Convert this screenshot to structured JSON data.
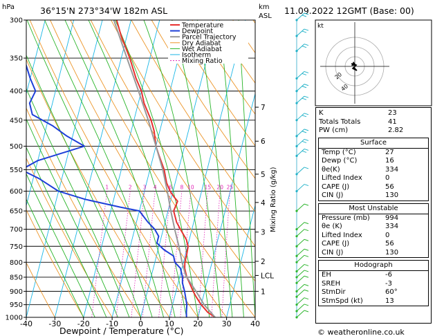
{
  "header": {
    "location": "36°15'N  273°34'W  182m  ASL",
    "datetime": "11.09.2022  12GMT  (Base: 00)",
    "hpa_label": "hPa",
    "km_label": "km",
    "asl_label": "ASL",
    "kt_label": "kt"
  },
  "footer": {
    "xlabel": "Dewpoint / Temperature (°C)",
    "copyright": "© weatheronline.co.uk"
  },
  "chart_data": {
    "type": "line",
    "title": "36°15'N  273°34'W  182m  ASL",
    "xlabel": "Dewpoint / Temperature (°C)",
    "ylabel": "hPa",
    "xlim": [
      -40,
      40
    ],
    "ylim": [
      1000,
      300
    ],
    "y_scale": "log",
    "pressure_levels": [
      300,
      350,
      400,
      450,
      500,
      550,
      600,
      650,
      700,
      750,
      800,
      850,
      900,
      950,
      1000
    ],
    "x_ticks": [
      -40,
      -30,
      -20,
      -10,
      0,
      10,
      20,
      30,
      40
    ],
    "km_ticks": [
      {
        "label": "7",
        "p": 427
      },
      {
        "label": "6",
        "p": 490
      },
      {
        "label": "5",
        "p": 560
      },
      {
        "label": "4",
        "p": 628
      },
      {
        "label": "3",
        "p": 708
      },
      {
        "label": "2",
        "p": 797
      },
      {
        "label": "LCL",
        "p": 844
      },
      {
        "label": "1",
        "p": 900
      }
    ],
    "mixing_ratio_label": "Mixing Ratio (g/kg)",
    "mixing_ratio_values": [
      "1",
      "2",
      "3",
      "4",
      "6",
      "8",
      "10",
      "15",
      "20",
      "25"
    ],
    "legend": [
      "Temperature",
      "Dewpoint",
      "Parcel Trajectory",
      "Dry Adiabat",
      "Wet Adiabat",
      "Isotherm",
      "Mixing Ratio"
    ],
    "legend_placement": "top-left",
    "series": [
      {
        "name": "Temperature",
        "color": "#e8302f",
        "points": [
          [
            1000,
            26
          ],
          [
            980,
            23
          ],
          [
            950,
            20
          ],
          [
            920,
            17.5
          ],
          [
            900,
            16
          ],
          [
            870,
            14
          ],
          [
            850,
            12.5
          ],
          [
            820,
            11
          ],
          [
            800,
            10.5
          ],
          [
            780,
            10.5
          ],
          [
            750,
            10.2
          ],
          [
            730,
            9
          ],
          [
            700,
            6
          ],
          [
            680,
            4
          ],
          [
            650,
            2
          ],
          [
            625,
            2.5
          ],
          [
            615,
            1
          ],
          [
            600,
            -1
          ],
          [
            580,
            -3
          ],
          [
            550,
            -5
          ],
          [
            520,
            -8
          ],
          [
            500,
            -10
          ],
          [
            470,
            -12
          ],
          [
            450,
            -14
          ],
          [
            420,
            -18
          ],
          [
            400,
            -20
          ],
          [
            380,
            -23
          ],
          [
            350,
            -27
          ],
          [
            320,
            -32
          ],
          [
            300,
            -35
          ]
        ]
      },
      {
        "name": "Dewpoint",
        "color": "#1e3fd8",
        "points": [
          [
            1000,
            16
          ],
          [
            980,
            15.5
          ],
          [
            950,
            15
          ],
          [
            900,
            13
          ],
          [
            870,
            11.5
          ],
          [
            850,
            11
          ],
          [
            820,
            9.5
          ],
          [
            800,
            7
          ],
          [
            780,
            6
          ],
          [
            760,
            2
          ],
          [
            740,
            -1
          ],
          [
            720,
            -1
          ],
          [
            700,
            -3
          ],
          [
            680,
            -6
          ],
          [
            650,
            -10
          ],
          [
            640,
            -17
          ],
          [
            620,
            -30
          ],
          [
            600,
            -40
          ],
          [
            570,
            -48
          ],
          [
            550,
            -55
          ],
          [
            530,
            -50
          ],
          [
            500,
            -35
          ],
          [
            480,
            -42
          ],
          [
            460,
            -48
          ],
          [
            440,
            -56
          ],
          [
            420,
            -58
          ],
          [
            400,
            -57
          ],
          [
            380,
            -60
          ],
          [
            350,
            -64
          ],
          [
            320,
            -68
          ],
          [
            300,
            -72
          ]
        ]
      },
      {
        "name": "Parcel Trajectory",
        "color": "#999999",
        "points": [
          [
            1000,
            26
          ],
          [
            950,
            21
          ],
          [
            900,
            17
          ],
          [
            844,
            12
          ],
          [
            800,
            9.5
          ],
          [
            750,
            7
          ],
          [
            700,
            4
          ],
          [
            650,
            1
          ],
          [
            600,
            -2
          ],
          [
            550,
            -5.5
          ],
          [
            500,
            -10
          ],
          [
            450,
            -15
          ],
          [
            400,
            -21
          ],
          [
            350,
            -28
          ],
          [
            300,
            -36
          ]
        ]
      }
    ]
  },
  "hodograph": {
    "ring_labels": [
      "40",
      "20"
    ]
  },
  "indices": {
    "rows": [
      {
        "label": "K",
        "value": "23"
      },
      {
        "label": "Totals Totals",
        "value": "41"
      },
      {
        "label": "PW (cm)",
        "value": "2.82"
      }
    ],
    "surface": {
      "title": "Surface",
      "rows": [
        {
          "label": "Temp (°C)",
          "value": "27"
        },
        {
          "label": "Dewp (°C)",
          "value": "16"
        },
        {
          "label": "θe(K)",
          "value": "334"
        },
        {
          "label": "Lifted Index",
          "value": "0"
        },
        {
          "label": "CAPE (J)",
          "value": "56"
        },
        {
          "label": "CIN (J)",
          "value": "130"
        }
      ]
    },
    "most_unstable": {
      "title": "Most Unstable",
      "rows": [
        {
          "label": "Pressure (mb)",
          "value": "994"
        },
        {
          "label": "θe (K)",
          "value": "334"
        },
        {
          "label": "Lifted Index",
          "value": "0"
        },
        {
          "label": "CAPE (J)",
          "value": "56"
        },
        {
          "label": "CIN (J)",
          "value": "130"
        }
      ]
    },
    "hodograph_box": {
      "title": "Hodograph",
      "rows": [
        {
          "label": "EH",
          "value": "-6"
        },
        {
          "label": "SREH",
          "value": "-3"
        },
        {
          "label": "StmDir",
          "value": "60°"
        },
        {
          "label": "StmSpd (kt)",
          "value": "13"
        }
      ]
    }
  }
}
